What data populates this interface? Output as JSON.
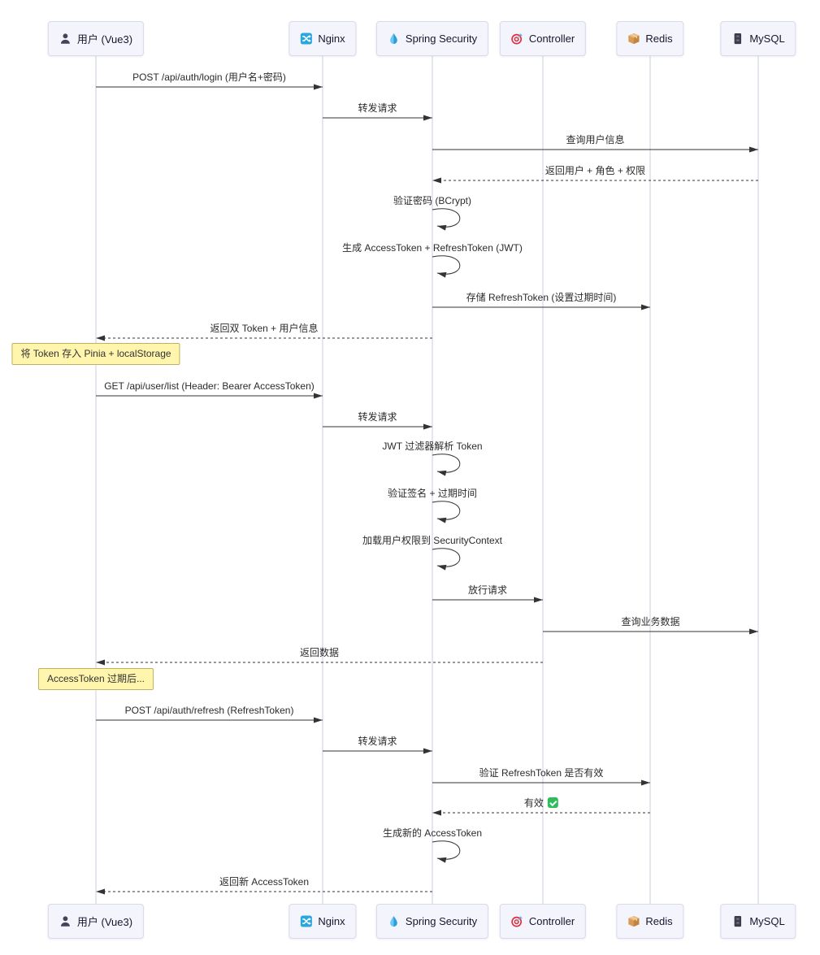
{
  "diagram": {
    "participants": [
      {
        "id": "user",
        "label": "用户 (Vue3)",
        "icon": "user-icon"
      },
      {
        "id": "nginx",
        "label": "Nginx",
        "icon": "shuffle-icon"
      },
      {
        "id": "spring",
        "label": "Spring Security",
        "icon": "droplet-icon"
      },
      {
        "id": "controller",
        "label": "Controller",
        "icon": "target-icon"
      },
      {
        "id": "redis",
        "label": "Redis",
        "icon": "package-icon"
      },
      {
        "id": "mysql",
        "label": "MySQL",
        "icon": "cabinet-icon"
      }
    ],
    "messages": [
      {
        "type": "solid",
        "from": "user",
        "to": "nginx",
        "text": "POST /api/auth/login (用户名+密码)"
      },
      {
        "type": "solid",
        "from": "nginx",
        "to": "spring",
        "text": "转发请求"
      },
      {
        "type": "solid",
        "from": "spring",
        "to": "mysql",
        "text": "查询用户信息"
      },
      {
        "type": "dashed",
        "from": "mysql",
        "to": "spring",
        "text": "返回用户 + 角色 + 权限"
      },
      {
        "type": "self",
        "from": "spring",
        "to": "spring",
        "text": "验证密码 (BCrypt)"
      },
      {
        "type": "self",
        "from": "spring",
        "to": "spring",
        "text": "生成 AccessToken + RefreshToken (JWT)"
      },
      {
        "type": "solid",
        "from": "spring",
        "to": "redis",
        "text": "存储 RefreshToken (设置过期时间)"
      },
      {
        "type": "dashed",
        "from": "spring",
        "to": "user",
        "text": "返回双 Token + 用户信息"
      },
      {
        "type": "note",
        "from": "user",
        "to": "user",
        "text": "将 Token 存入 Pinia + localStorage"
      },
      {
        "type": "solid",
        "from": "user",
        "to": "nginx",
        "text": "GET /api/user/list (Header: Bearer AccessToken)"
      },
      {
        "type": "solid",
        "from": "nginx",
        "to": "spring",
        "text": "转发请求"
      },
      {
        "type": "self",
        "from": "spring",
        "to": "spring",
        "text": "JWT 过滤器解析 Token"
      },
      {
        "type": "self",
        "from": "spring",
        "to": "spring",
        "text": "验证签名 + 过期时间"
      },
      {
        "type": "self",
        "from": "spring",
        "to": "spring",
        "text": "加载用户权限到 SecurityContext"
      },
      {
        "type": "solid",
        "from": "spring",
        "to": "controller",
        "text": "放行请求"
      },
      {
        "type": "solid",
        "from": "controller",
        "to": "mysql",
        "text": "查询业务数据"
      },
      {
        "type": "dashed",
        "from": "controller",
        "to": "user",
        "text": "返回数据"
      },
      {
        "type": "note",
        "from": "user",
        "to": "user",
        "text": "AccessToken 过期后..."
      },
      {
        "type": "solid",
        "from": "user",
        "to": "nginx",
        "text": "POST /api/auth/refresh (RefreshToken)"
      },
      {
        "type": "solid",
        "from": "nginx",
        "to": "spring",
        "text": "转发请求"
      },
      {
        "type": "solid",
        "from": "spring",
        "to": "redis",
        "text": "验证 RefreshToken 是否有效"
      },
      {
        "type": "dashed",
        "from": "redis",
        "to": "spring",
        "text": "有效 ✅"
      },
      {
        "type": "self",
        "from": "spring",
        "to": "spring",
        "text": "生成新的 AccessToken"
      },
      {
        "type": "dashed",
        "from": "spring",
        "to": "user",
        "text": "返回新 AccessToken"
      }
    ],
    "colors": {
      "actor_fill": "#f4f4fd",
      "actor_border": "#d9d9ee",
      "lifeline": "#cccce0",
      "arrow": "#333333",
      "note_fill": "#fff5ad",
      "note_border": "#bdb25f",
      "check_green": "#2ebd59"
    }
  }
}
